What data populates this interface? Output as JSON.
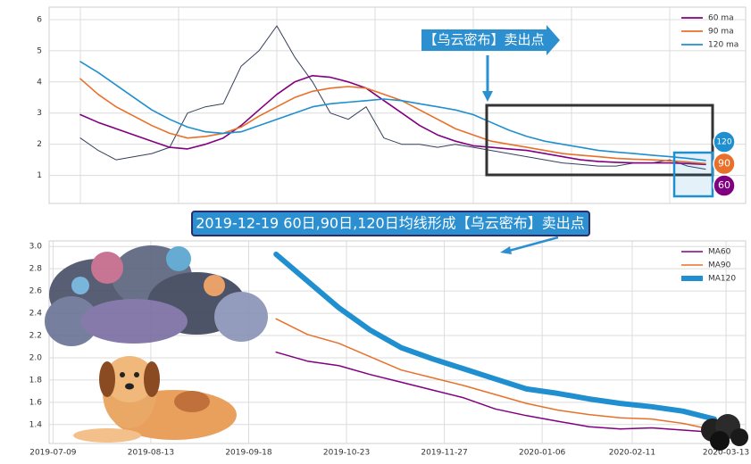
{
  "chart_data": [
    {
      "type": "line",
      "categories": [
        null,
        null,
        null,
        null,
        null,
        null,
        null,
        null,
        null,
        null,
        null,
        null,
        null,
        null,
        null,
        null,
        null,
        null,
        null,
        null,
        null,
        null,
        null,
        null,
        null,
        null,
        null,
        null,
        null,
        null,
        null,
        null,
        null,
        null,
        null,
        null
      ],
      "series": [
        {
          "color": "#34405a",
          "values": [
            2.2,
            1.8,
            1.5,
            1.6,
            1.7,
            1.9,
            3.0,
            3.2,
            3.3,
            4.5,
            5.0,
            5.8,
            4.8,
            4.0,
            3.0,
            2.8,
            3.2,
            2.2,
            2.0,
            2.0,
            1.9,
            2.0,
            1.9,
            1.8,
            1.7,
            1.6,
            1.5,
            1.4,
            1.35,
            1.3,
            1.3,
            1.4,
            1.4,
            1.5,
            1.3,
            1.2
          ]
        },
        {
          "name": "60 ma",
          "color": "#800080",
          "values": [
            2.95,
            2.7,
            2.5,
            2.3,
            2.1,
            1.9,
            1.85,
            2.0,
            2.2,
            2.6,
            3.1,
            3.6,
            4.0,
            4.2,
            4.15,
            4.0,
            3.8,
            3.4,
            3.0,
            2.6,
            2.3,
            2.1,
            1.95,
            1.9,
            1.85,
            1.8,
            1.7,
            1.6,
            1.5,
            1.45,
            1.42,
            1.4,
            1.4,
            1.4,
            1.38,
            1.35
          ]
        },
        {
          "name": "90 ma",
          "color": "#e8702a",
          "values": [
            4.1,
            3.6,
            3.2,
            2.9,
            2.6,
            2.35,
            2.2,
            2.25,
            2.35,
            2.55,
            2.9,
            3.2,
            3.5,
            3.7,
            3.8,
            3.85,
            3.8,
            3.6,
            3.4,
            3.1,
            2.8,
            2.5,
            2.3,
            2.1,
            2.0,
            1.9,
            1.8,
            1.7,
            1.65,
            1.6,
            1.55,
            1.52,
            1.5,
            1.47,
            1.43,
            1.38
          ]
        },
        {
          "name": "120 ma",
          "color": "#1f8fcf",
          "values": [
            4.65,
            4.3,
            3.9,
            3.5,
            3.1,
            2.8,
            2.55,
            2.4,
            2.35,
            2.4,
            2.6,
            2.8,
            3.0,
            3.2,
            3.3,
            3.35,
            3.4,
            3.45,
            3.4,
            3.3,
            3.2,
            3.1,
            2.95,
            2.7,
            2.45,
            2.25,
            2.1,
            2.0,
            1.9,
            1.8,
            1.75,
            1.7,
            1.65,
            1.6,
            1.55,
            1.48
          ]
        }
      ],
      "ylim": [
        0.1,
        6.4
      ],
      "yticks": [
        1,
        2,
        3,
        4,
        5,
        6
      ],
      "grid": true,
      "legend": "upper right",
      "annotation": "【乌云密布】卖出点",
      "end_labels": [
        "120",
        "90",
        "60"
      ]
    },
    {
      "type": "line",
      "annotation": "2019-12-19 60日,90日,120日均线形成【乌云密布】卖出点",
      "x": [
        57,
        65,
        73,
        81,
        89,
        97,
        105,
        113,
        121,
        129,
        137,
        145,
        153,
        161,
        169
      ],
      "series": [
        {
          "name": "MA60",
          "color": "#800080",
          "line_width": 1.5,
          "values": [
            2.05,
            1.97,
            1.93,
            1.85,
            1.78,
            1.71,
            1.64,
            1.54,
            1.48,
            1.43,
            1.38,
            1.36,
            1.37,
            1.35,
            1.33
          ]
        },
        {
          "name": "MA90",
          "color": "#e8702a",
          "line_width": 1.5,
          "values": [
            2.35,
            2.21,
            2.13,
            2.01,
            1.89,
            1.82,
            1.75,
            1.67,
            1.59,
            1.53,
            1.49,
            1.46,
            1.45,
            1.41,
            1.35
          ]
        },
        {
          "name": "MA120",
          "color": "#1f8fcf",
          "line_width": 6,
          "values": [
            2.93,
            2.69,
            2.45,
            2.25,
            2.09,
            1.99,
            1.9,
            1.81,
            1.72,
            1.68,
            1.63,
            1.59,
            1.56,
            1.52,
            1.45
          ]
        }
      ],
      "xlim": [
        -1,
        177
      ],
      "xticks": [
        {
          "value": 0,
          "label": "2019-07-09"
        },
        {
          "value": 25,
          "label": "2019-08-13"
        },
        {
          "value": 50,
          "label": "2019-09-18"
        },
        {
          "value": 75,
          "label": "2019-10-23"
        },
        {
          "value": 100,
          "label": "2019-11-27"
        },
        {
          "value": 125,
          "label": "2020-01-06"
        },
        {
          "value": 148,
          "label": "2020-02-11"
        },
        {
          "value": 172,
          "label": "2020-03-13"
        }
      ],
      "ylim": [
        1.23,
        3.05
      ],
      "yticks": [
        1.4,
        1.6,
        1.8,
        {
          "value": 2,
          "label": "2.0"
        },
        2.2,
        2.4,
        2.6,
        2.8,
        {
          "value": 3,
          "label": "3.0"
        }
      ],
      "grid": true,
      "legend": "upper right"
    }
  ]
}
